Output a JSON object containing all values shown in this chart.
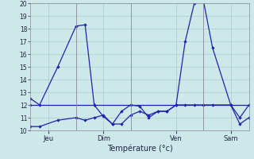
{
  "background_color": "#cce8e8",
  "grid_color": "#aacccc",
  "line_color": "#2222aa",
  "xlabel": "Température (°c)",
  "ylim": [
    10,
    20
  ],
  "yticks": [
    10,
    11,
    12,
    13,
    14,
    15,
    16,
    17,
    18,
    19,
    20
  ],
  "xlim": [
    0,
    24
  ],
  "xtick_positions": [
    2,
    8,
    16,
    22
  ],
  "xtick_labels": [
    "Jeu",
    "Dim",
    "Ven",
    "Sam"
  ],
  "vlines": [
    5,
    11,
    19
  ],
  "series1": [
    [
      0,
      12.5
    ],
    [
      1,
      12.0
    ],
    [
      3,
      15.0
    ],
    [
      5,
      18.2
    ],
    [
      6,
      18.3
    ],
    [
      7,
      12.0
    ],
    [
      8,
      11.1
    ],
    [
      9,
      10.5
    ],
    [
      10,
      11.5
    ],
    [
      11,
      12.0
    ],
    [
      12,
      11.9
    ],
    [
      13,
      11.0
    ],
    [
      14,
      11.5
    ],
    [
      15,
      11.5
    ],
    [
      16,
      12.0
    ],
    [
      17,
      17.0
    ],
    [
      18,
      20.0
    ],
    [
      19,
      20.2
    ],
    [
      20,
      16.5
    ],
    [
      22,
      12.0
    ],
    [
      23,
      10.5
    ],
    [
      24,
      11.0
    ]
  ],
  "series2": [
    [
      0,
      10.3
    ],
    [
      1,
      10.3
    ],
    [
      3,
      10.8
    ],
    [
      5,
      11.0
    ],
    [
      6,
      10.8
    ],
    [
      7,
      11.0
    ],
    [
      8,
      11.2
    ],
    [
      9,
      10.5
    ],
    [
      10,
      10.5
    ],
    [
      11,
      11.2
    ],
    [
      12,
      11.5
    ],
    [
      13,
      11.2
    ],
    [
      14,
      11.5
    ],
    [
      15,
      11.5
    ],
    [
      16,
      12.0
    ],
    [
      17,
      12.0
    ],
    [
      18,
      12.0
    ],
    [
      19,
      12.0
    ],
    [
      20,
      12.0
    ],
    [
      22,
      12.0
    ],
    [
      23,
      11.0
    ],
    [
      24,
      12.0
    ]
  ],
  "series3": [
    [
      0,
      12.0
    ],
    [
      7,
      12.0
    ],
    [
      19,
      12.0
    ],
    [
      24,
      12.0
    ]
  ]
}
